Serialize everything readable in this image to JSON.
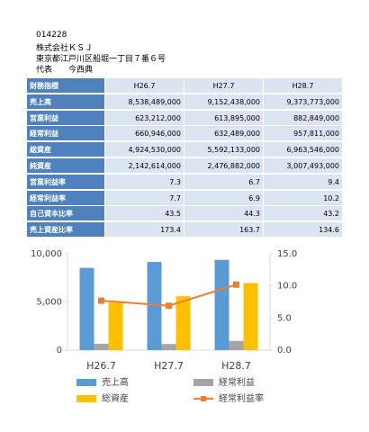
{
  "header": {
    "lines": [
      "014228",
      "株式会社ＫＳＪ",
      "東京都江戸川区船堀一丁目７番６号",
      "代表　　今西典"
    ]
  },
  "table": {
    "header": [
      "財務指標",
      "H26.7",
      "H27.7",
      "H28.7"
    ],
    "rows": [
      [
        "売上高",
        "8,538,489,000",
        "9,152,438,000",
        "9,373,773,000"
      ],
      [
        "営業利益",
        "623,212,000",
        "613,895,000",
        "882,849,000"
      ],
      [
        "経常利益",
        "660,946,000",
        "632,489,000",
        "957,811,000"
      ],
      [
        "総資産",
        "4,924,530,000",
        "5,592,133,000",
        "6,963,546,000"
      ],
      [
        "純資産",
        "2,142,614,000",
        "2,476,882,000",
        "3,007,493,000"
      ],
      [
        "営業利益率",
        "7.3",
        "6.7",
        "9.4"
      ],
      [
        "経常利益率",
        "7.7",
        "6.9",
        "10.2"
      ],
      [
        "自己資本比率",
        "43.5",
        "44.3",
        "43.2"
      ],
      [
        "売上資産比率",
        "173.4",
        "163.7",
        "134.6"
      ]
    ]
  },
  "chart_data": {
    "type": "bar",
    "categories": [
      "H26.7",
      "H27.7",
      "H28.7"
    ],
    "series": [
      {
        "name": "売上高",
        "color": "#5b9bd5",
        "values": [
          8538.5,
          9152.4,
          9373.8
        ]
      },
      {
        "name": "経常利益",
        "color": "#a5a5a5",
        "values": [
          660.9,
          632.5,
          957.8
        ]
      },
      {
        "name": "総資産",
        "color": "#ffc000",
        "values": [
          4924.5,
          5592.1,
          6963.5
        ]
      },
      {
        "name": "経常利益率",
        "color": "#ed7d31",
        "type": "line",
        "axis": "y2",
        "values": [
          7.7,
          6.9,
          10.2
        ]
      }
    ],
    "ylim": [
      0,
      10000
    ],
    "yticks": [
      0,
      {
        "value": 5000,
        "label": "5,000"
      },
      {
        "value": 10000,
        "label": "10,000"
      }
    ],
    "y2lim": [
      0,
      15
    ],
    "y2ticks": [
      {
        "value": 0,
        "label": "0.0"
      },
      {
        "value": 5,
        "label": "5.0"
      },
      {
        "value": 10,
        "label": "10.0"
      },
      {
        "value": 15,
        "label": "15.0"
      }
    ]
  }
}
